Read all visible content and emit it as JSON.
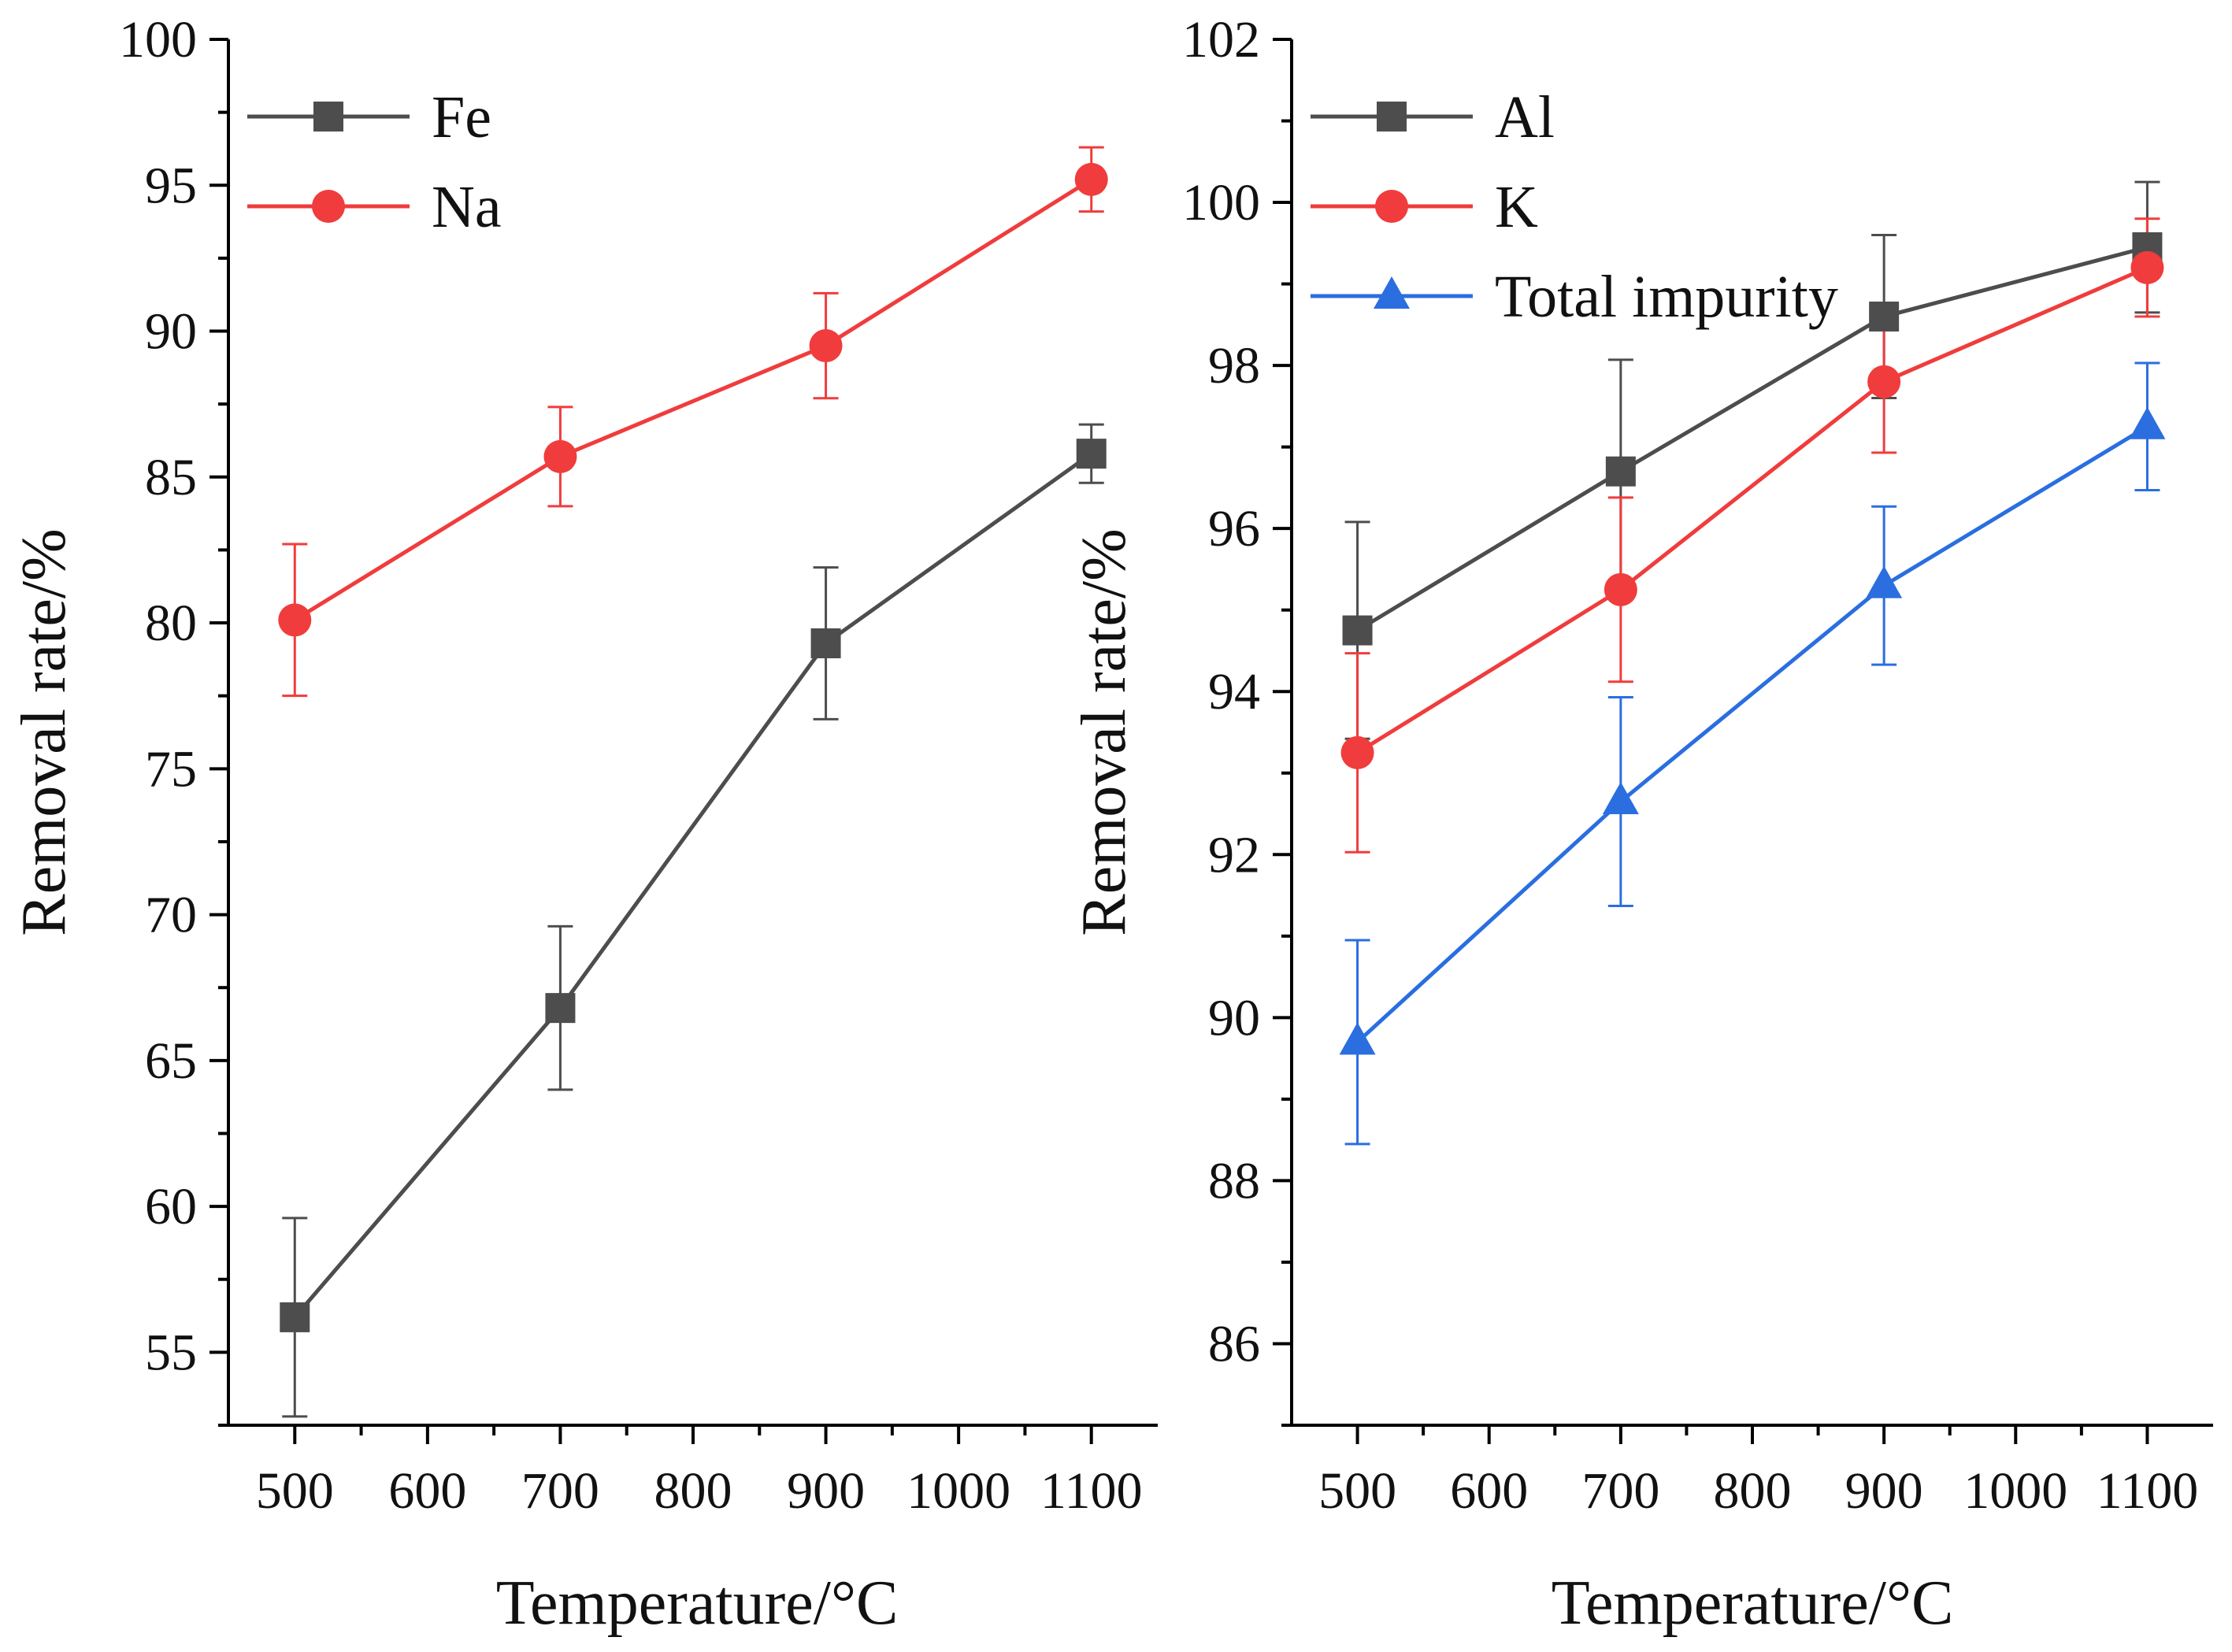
{
  "chart_data": [
    {
      "type": "line",
      "panel": "left",
      "title": "",
      "xlabel": "Temperature/°C",
      "ylabel": "Removal rate/%",
      "xlim": [
        450,
        1150
      ],
      "ylim": [
        52.5,
        100
      ],
      "x_ticks": [
        500,
        600,
        700,
        800,
        900,
        1000,
        1100
      ],
      "y_ticks": [
        55,
        60,
        65,
        70,
        75,
        80,
        85,
        90,
        95,
        100
      ],
      "grid": false,
      "legend_position": "top-left",
      "series": [
        {
          "name": "Fe",
          "color": "#4d4d4d",
          "marker": "square",
          "x": [
            500,
            700,
            900,
            1100
          ],
          "values": [
            56.2,
            66.8,
            79.3,
            85.8
          ],
          "errors": [
            3.4,
            2.8,
            2.6,
            1.0
          ]
        },
        {
          "name": "Na",
          "color": "#f03c3c",
          "marker": "circle",
          "x": [
            500,
            700,
            900,
            1100
          ],
          "values": [
            80.1,
            85.7,
            89.5,
            95.2
          ],
          "errors": [
            2.6,
            1.7,
            1.8,
            1.1
          ]
        }
      ]
    },
    {
      "type": "line",
      "panel": "right",
      "title": "",
      "xlabel": "Temperature/°C",
      "ylabel": "Removal rate/%",
      "xlim": [
        450,
        1150
      ],
      "ylim": [
        85,
        102
      ],
      "x_ticks": [
        500,
        600,
        700,
        800,
        900,
        1000,
        1100
      ],
      "y_ticks": [
        86,
        88,
        90,
        92,
        94,
        96,
        98,
        100,
        102
      ],
      "grid": false,
      "legend_position": "top-left",
      "series": [
        {
          "name": "Al",
          "color": "#4d4d4d",
          "marker": "square",
          "x": [
            500,
            700,
            900,
            1100
          ],
          "values": [
            94.75,
            96.7,
            98.6,
            99.45
          ],
          "errors": [
            1.33,
            1.37,
            1.0,
            0.8
          ]
        },
        {
          "name": "K",
          "color": "#f03c3c",
          "marker": "circle",
          "x": [
            500,
            700,
            900,
            1100
          ],
          "values": [
            93.25,
            95.25,
            97.8,
            99.2
          ],
          "errors": [
            1.22,
            1.13,
            0.87,
            0.6
          ]
        },
        {
          "name": "Total impurity",
          "color": "#2a6ee0",
          "marker": "triangle",
          "x": [
            500,
            700,
            900,
            1100
          ],
          "values": [
            89.7,
            92.65,
            95.3,
            97.25
          ],
          "errors": [
            1.25,
            1.28,
            0.97,
            0.78
          ]
        }
      ]
    }
  ]
}
